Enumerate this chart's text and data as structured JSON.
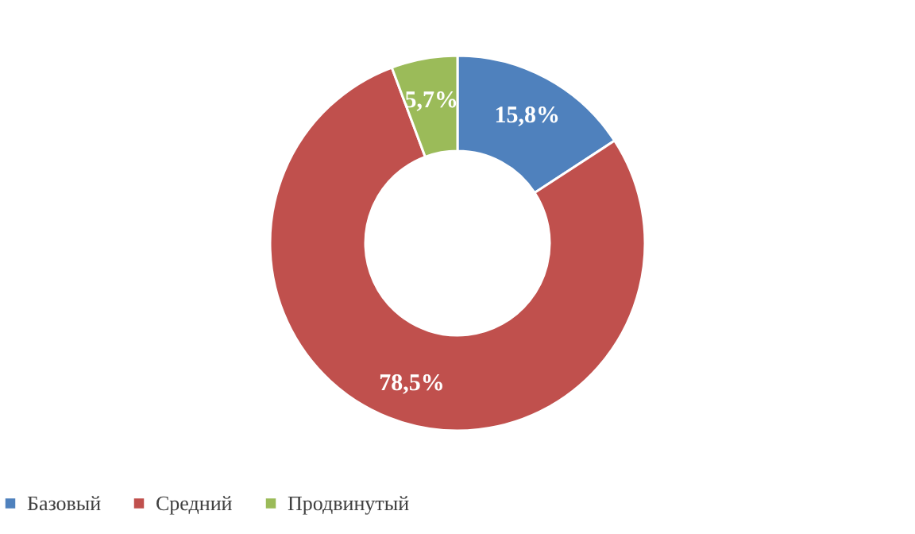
{
  "chart_data": {
    "type": "donut",
    "categories": [
      "Базовый",
      "Средний",
      "Продвинутый"
    ],
    "values": [
      15.8,
      78.5,
      5.7
    ],
    "colors": [
      "#4f81bd",
      "#c0504d",
      "#9bbb59"
    ],
    "value_labels": [
      "15,8%",
      "78,5%",
      "5,7%"
    ],
    "legend": "bottom"
  }
}
